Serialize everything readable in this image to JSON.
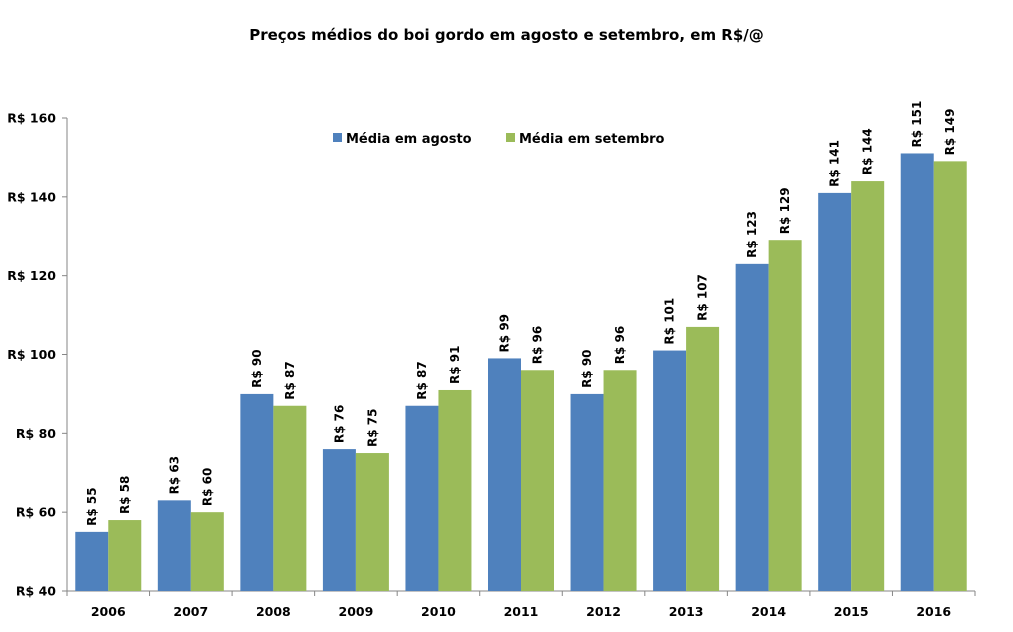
{
  "chart_data": {
    "type": "bar",
    "title": "Preços médios do boi gordo em agosto e setembro, em R$/@",
    "xlabel": "",
    "ylabel": "",
    "ylim": [
      40,
      160
    ],
    "y_ticks": [
      40,
      60,
      80,
      100,
      120,
      140,
      160
    ],
    "y_tick_prefix": "R$ ",
    "grid": false,
    "legend_position": "top-center",
    "categories": [
      "2006",
      "2007",
      "2008",
      "2009",
      "2010",
      "2011",
      "2012",
      "2013",
      "2014",
      "2015",
      "2016"
    ],
    "series": [
      {
        "name": "Média em agosto",
        "color": "#4F81BD",
        "values": [
          55,
          63,
          90,
          76,
          87,
          99,
          90,
          101,
          123,
          141,
          151
        ],
        "labels": [
          "R$ 55",
          "R$ 63",
          "R$ 90",
          "R$ 76",
          "R$ 87",
          "R$ 99",
          "R$ 90",
          "R$ 101",
          "R$ 123",
          "R$ 141",
          "R$ 151"
        ]
      },
      {
        "name": "Média em setembro",
        "color": "#9BBB59",
        "values": [
          58,
          60,
          87,
          75,
          91,
          96,
          96,
          107,
          129,
          144,
          149
        ],
        "labels": [
          "R$ 58",
          "R$ 60",
          "R$ 87",
          "R$ 75",
          "R$ 91",
          "R$ 96",
          "R$ 96",
          "R$ 107",
          "R$ 129",
          "R$ 144",
          "R$ 149"
        ]
      }
    ]
  }
}
